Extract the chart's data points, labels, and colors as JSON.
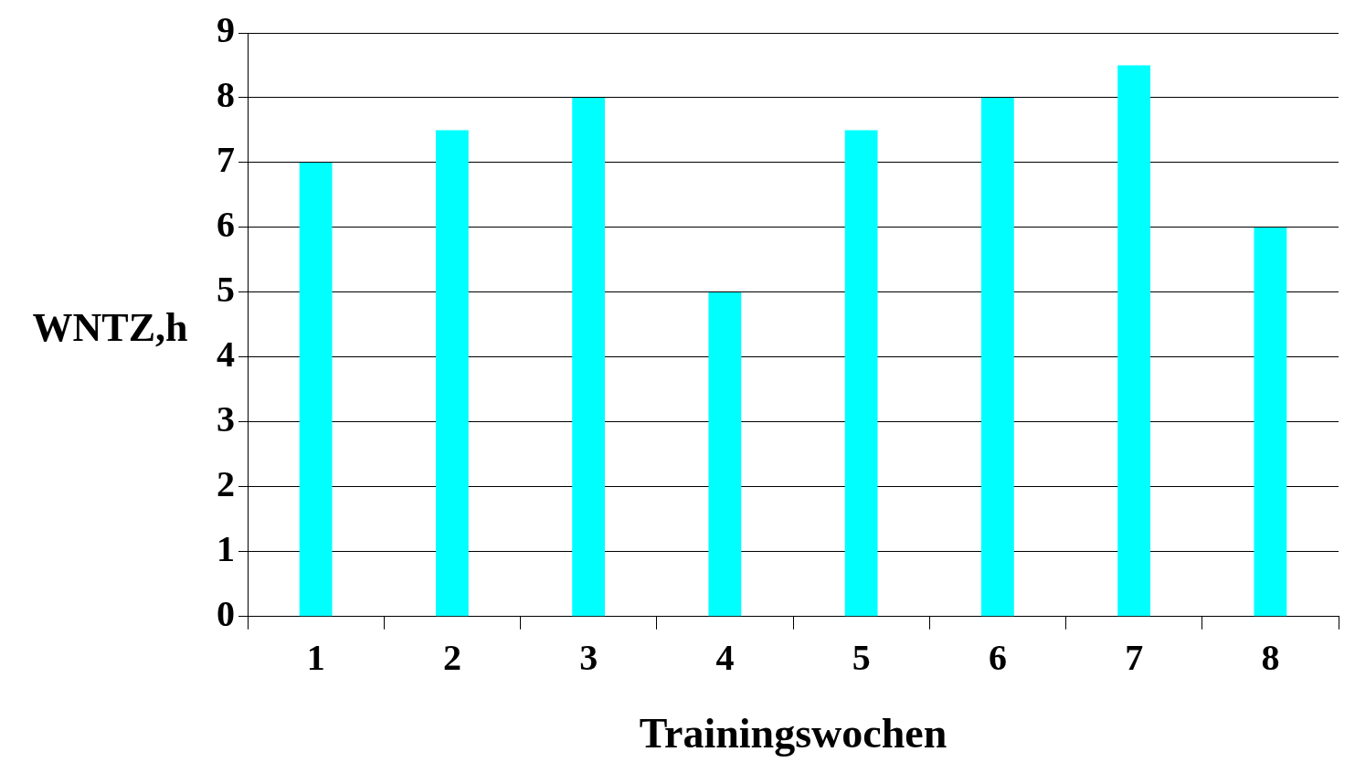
{
  "chart_data": {
    "type": "bar",
    "xlabel": "Trainingswochen",
    "ylabel": "WNTZ,h",
    "categories": [
      "1",
      "2",
      "3",
      "4",
      "5",
      "6",
      "7",
      "8"
    ],
    "values": [
      7,
      7.5,
      8,
      5,
      7.5,
      8,
      8.5,
      6
    ],
    "color": "#00ffff",
    "ylim": [
      0,
      9
    ],
    "yticks": [
      0,
      1,
      2,
      3,
      4,
      5,
      6,
      7,
      8,
      9
    ],
    "grid": "y"
  }
}
